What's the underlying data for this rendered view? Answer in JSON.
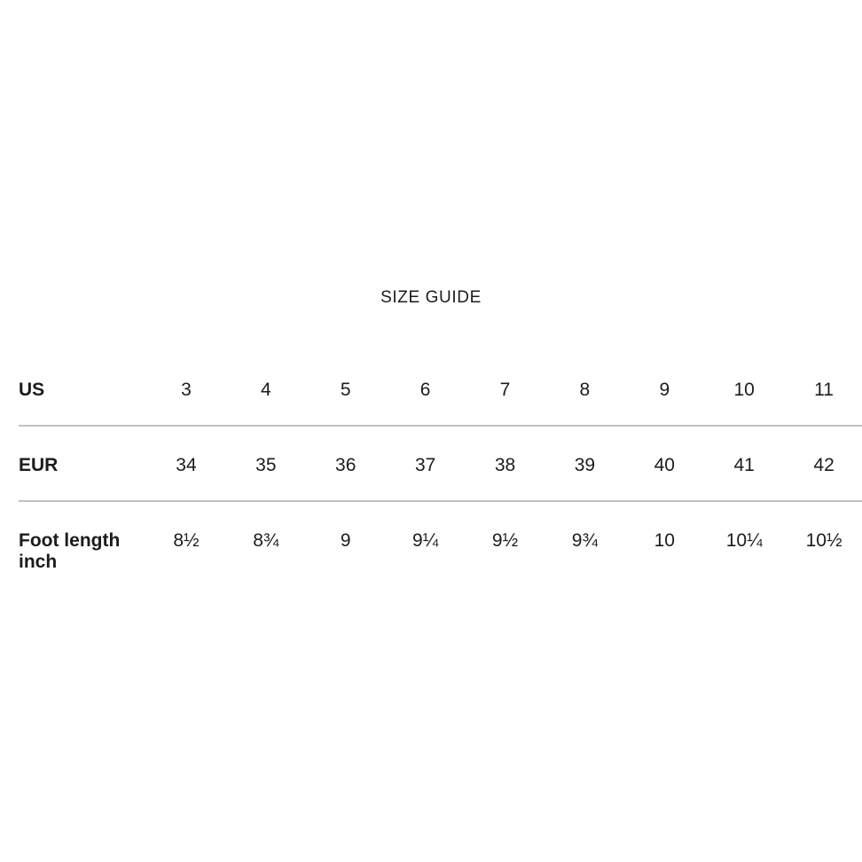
{
  "title": "SIZE GUIDE",
  "table": {
    "rows": [
      {
        "label": "US",
        "values": [
          "3",
          "4",
          "5",
          "6",
          "7",
          "8",
          "9",
          "10",
          "11"
        ]
      },
      {
        "label": "EUR",
        "values": [
          "34",
          "35",
          "36",
          "37",
          "38",
          "39",
          "40",
          "41",
          "42"
        ]
      },
      {
        "label": "Foot length inch",
        "values": [
          "8½",
          "8¾",
          "9",
          "9¼",
          "9½",
          "9¾",
          "10",
          "10¼",
          "10½"
        ]
      }
    ]
  },
  "colors": {
    "background": "#ffffff",
    "text": "#1c1c1c",
    "divider": "#c2c2c2"
  }
}
